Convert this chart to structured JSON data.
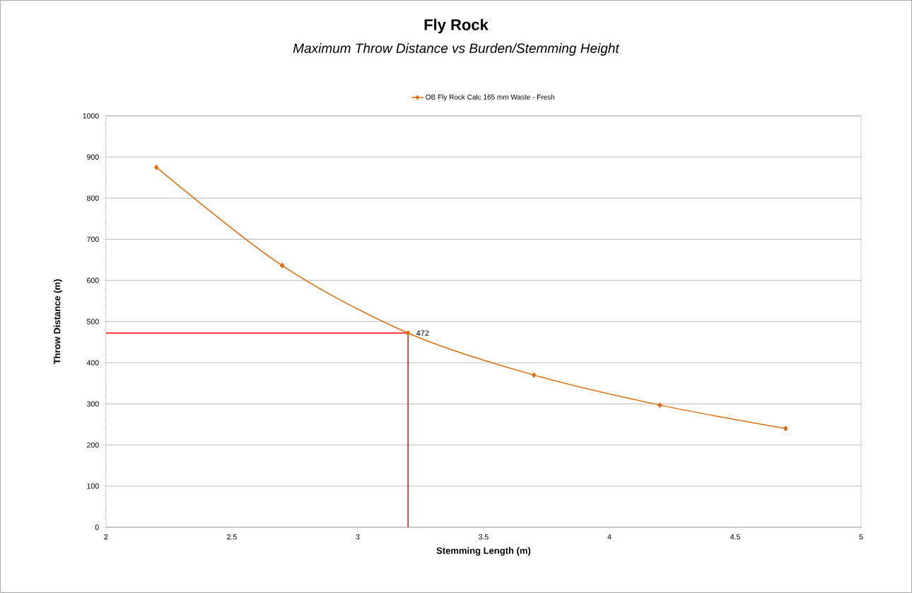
{
  "chart_data": {
    "type": "line",
    "title": "Fly Rock",
    "subtitle": "Maximum Throw Distance vs Burden/Stemming Height",
    "xlabel": "Stemming Length (m)",
    "ylabel": "Throw Distance (m)",
    "x": [
      2.2,
      2.7,
      3.2,
      3.7,
      4.2,
      4.7
    ],
    "series": [
      {
        "name": "OB Fly Rock Calc 165 mm Waste - Fresh",
        "color": "#e46c0a",
        "values": [
          875,
          636,
          472,
          370,
          297,
          240
        ],
        "value_labels": [
          null,
          null,
          "472",
          null,
          null,
          null
        ]
      }
    ],
    "ref_lines": [
      {
        "axis": "y",
        "value": 472,
        "color": "#ff0000"
      },
      {
        "axis": "x",
        "value": 3.2,
        "color": "#ff0000"
      }
    ],
    "marker": "diamond",
    "grid": "y",
    "legend": "top",
    "xlim": [
      2,
      5
    ],
    "xticks": [
      2,
      2.5,
      3,
      3.5,
      4,
      4.5,
      5
    ],
    "ylim": [
      0,
      1000
    ],
    "yticks": [
      0,
      100,
      200,
      300,
      400,
      500,
      600,
      700,
      800,
      900,
      1000
    ]
  }
}
